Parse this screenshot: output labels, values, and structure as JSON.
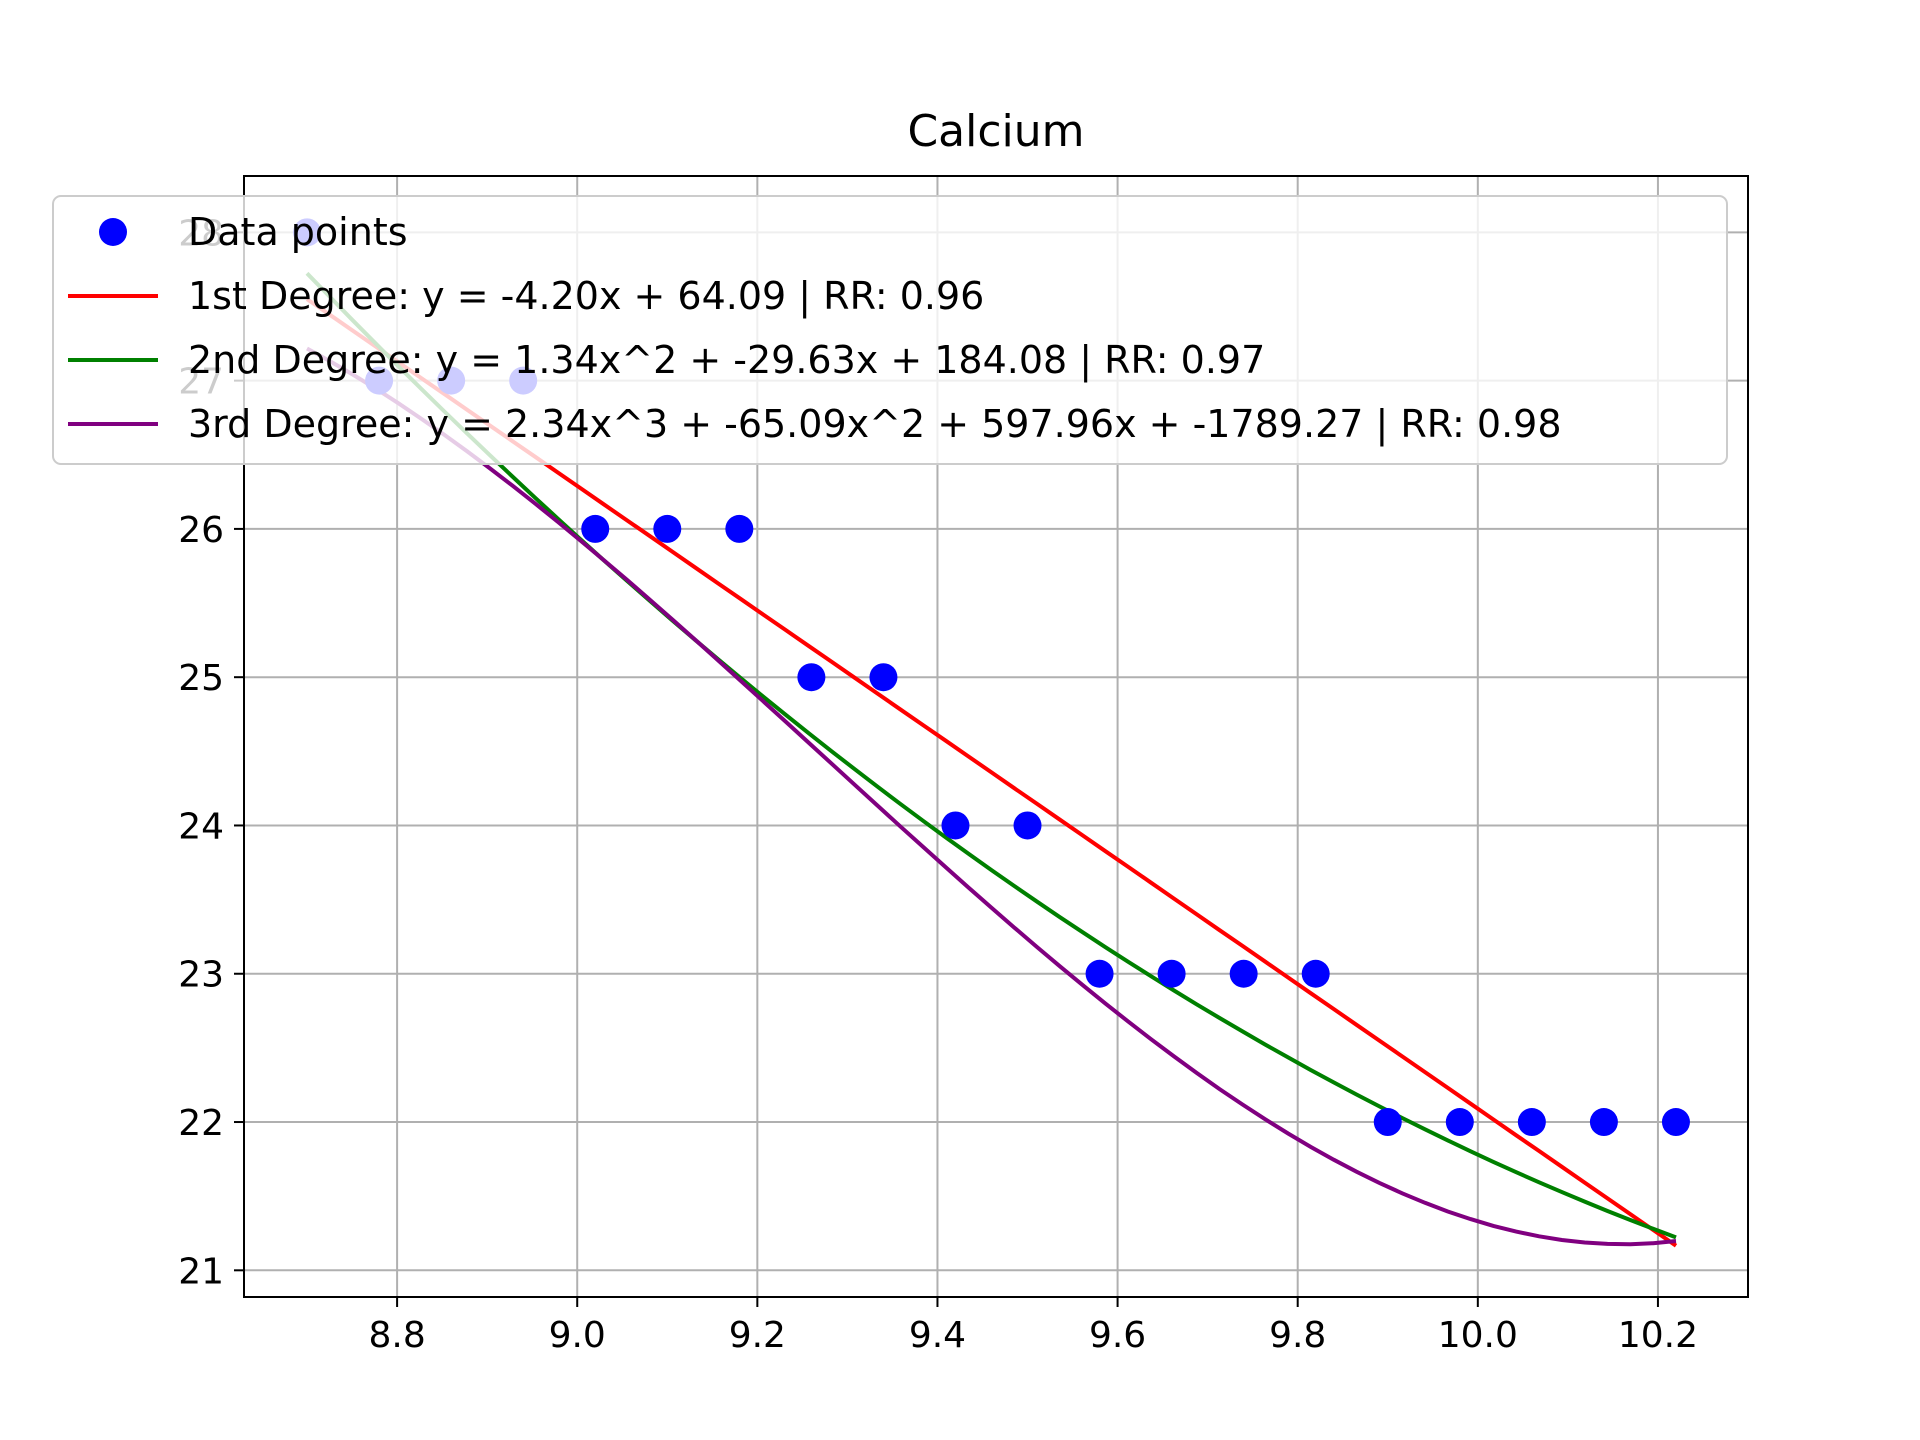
{
  "chart_data": {
    "type": "scatter",
    "title": "Calcium",
    "xlabel": "",
    "ylabel": "",
    "xlim": [
      8.63,
      10.3
    ],
    "ylim": [
      20.82,
      28.38
    ],
    "xticks": [
      8.8,
      9.0,
      9.2,
      9.4,
      9.6,
      9.8,
      10.0,
      10.2
    ],
    "xtick_labels": [
      "8.8",
      "9.0",
      "9.2",
      "9.4",
      "9.6",
      "9.8",
      "10.0",
      "10.2"
    ],
    "yticks": [
      21,
      22,
      23,
      24,
      25,
      26,
      27,
      28
    ],
    "ytick_labels": [
      "21",
      "22",
      "23",
      "24",
      "25",
      "26",
      "27",
      "28"
    ],
    "grid": true,
    "legend_position": "top",
    "points": {
      "name": "Data points",
      "color": "#0000ff",
      "x": [
        8.7,
        8.78,
        8.86,
        8.94,
        9.02,
        9.1,
        9.18,
        9.26,
        9.34,
        9.42,
        9.5,
        9.58,
        9.66,
        9.74,
        9.82,
        9.9,
        9.98,
        10.06,
        10.14,
        10.22
      ],
      "y": [
        28,
        27,
        27,
        27,
        26,
        26,
        26,
        25,
        25,
        24,
        24,
        23,
        23,
        23,
        23,
        22,
        22,
        22,
        22,
        22
      ]
    },
    "fits": [
      {
        "name": "1st Degree: y = -4.20x + 64.09 | RR: 0.96",
        "color": "#ff0000",
        "coefficients": [
          64.09,
          -4.2
        ]
      },
      {
        "name": "2nd Degree: y = 1.34x^2 + -29.63x + 184.08 | RR: 0.97",
        "color": "#008000",
        "coefficients": [
          184.08,
          -29.63,
          1.34
        ]
      },
      {
        "name": "3rd Degree: y = 2.34x^3 + -65.09x^2 + 597.96x + -1789.27 | RR: 0.98",
        "color": "#800080",
        "coefficients": [
          -1789.27,
          597.96,
          -65.09,
          2.34
        ]
      }
    ]
  }
}
